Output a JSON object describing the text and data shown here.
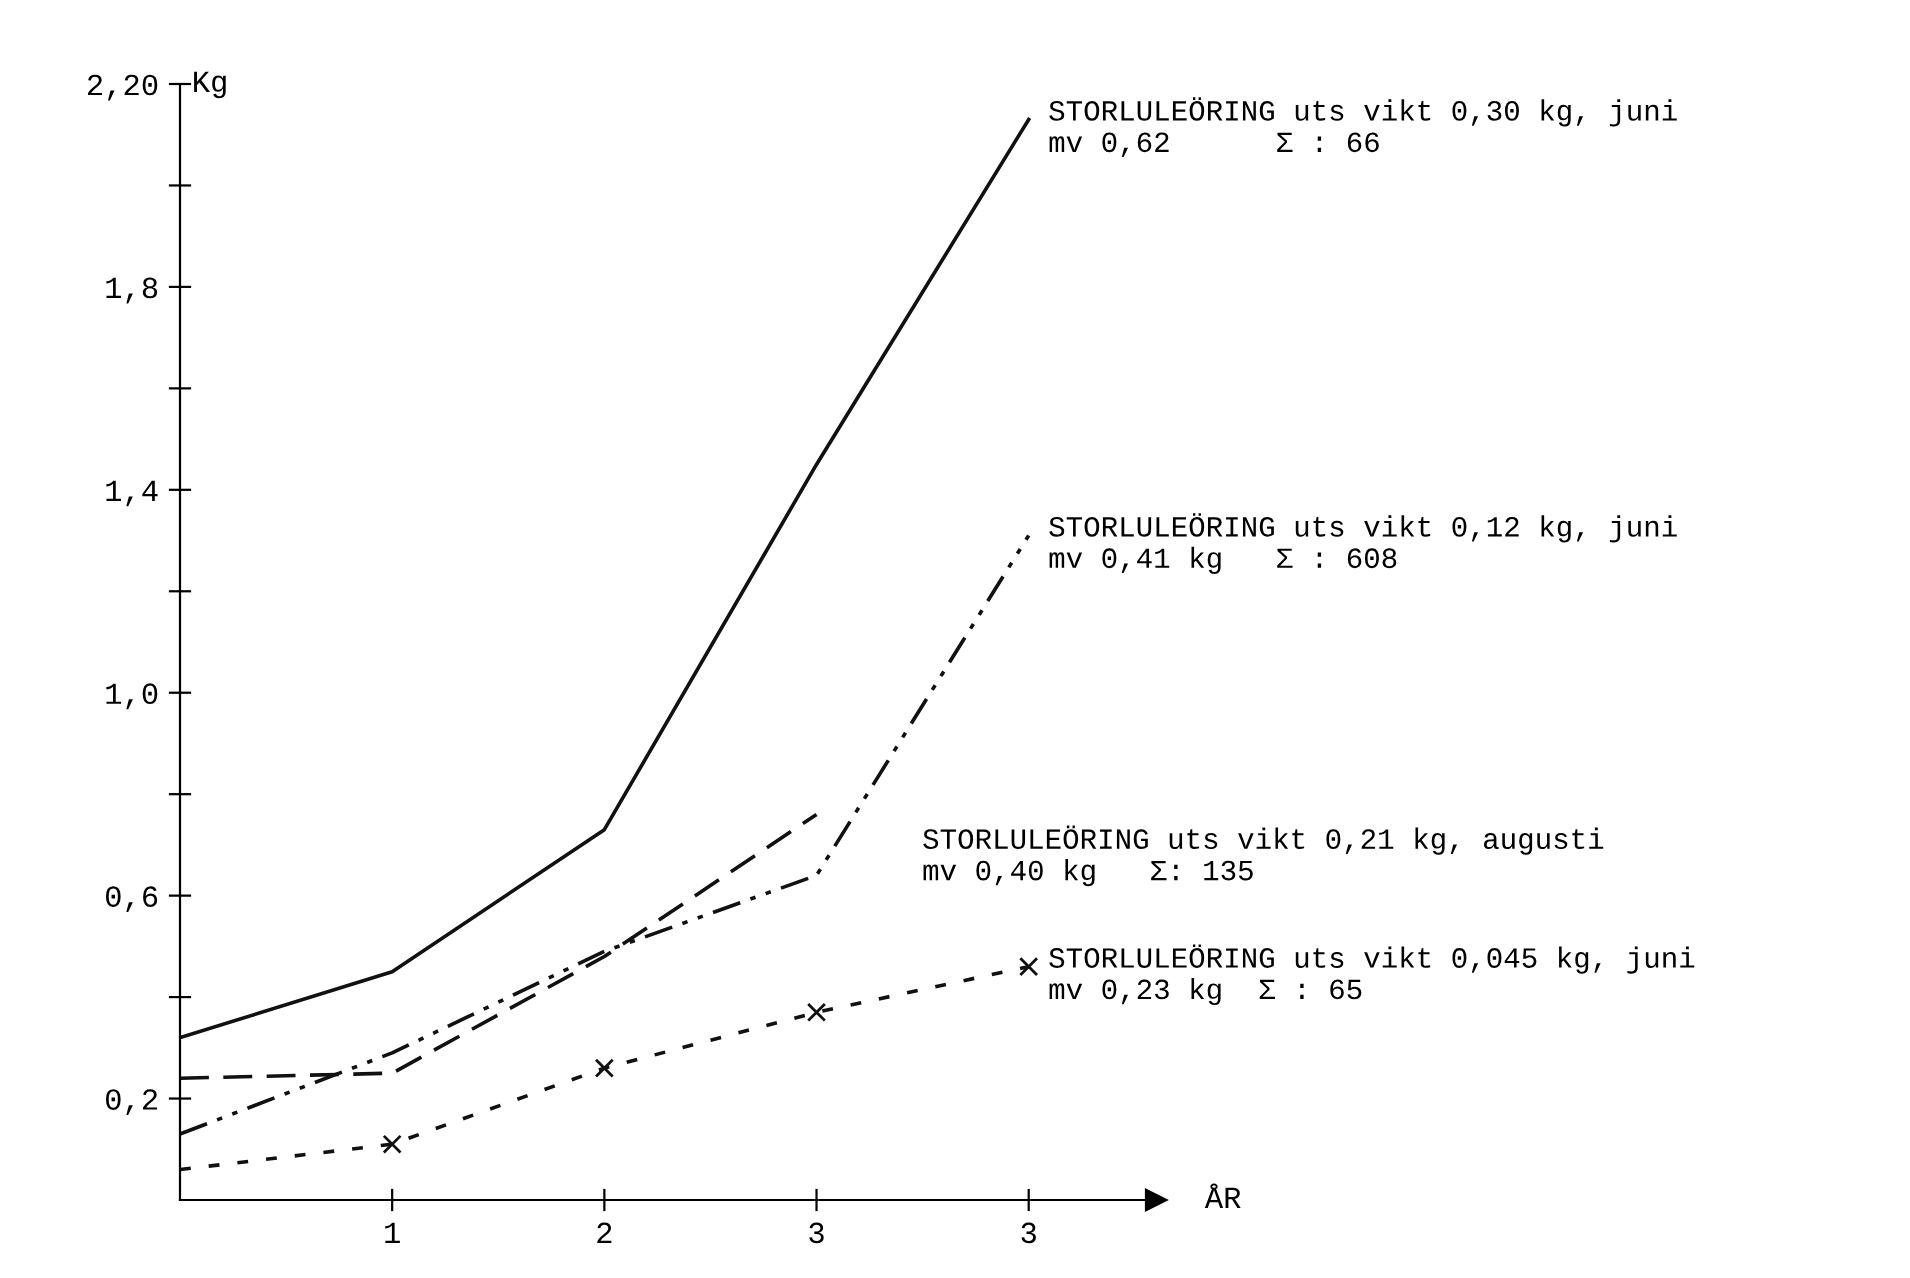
{
  "chart_data": {
    "type": "line",
    "ylabel": "Kg",
    "xlabel": "ÅR",
    "categories": [
      null,
      "1",
      "2",
      "3",
      "3"
    ],
    "ylim": [
      0,
      2.2
    ],
    "yticks": [
      {
        "value": 0.2,
        "label": "0,2"
      },
      {
        "value": 0.4,
        "label": null
      },
      {
        "value": 0.6,
        "label": "0,6"
      },
      {
        "value": 0.8,
        "label": null
      },
      {
        "value": 1.0,
        "label": "1,0"
      },
      {
        "value": 1.2,
        "label": null
      },
      {
        "value": 1.4,
        "label": "1,4"
      },
      {
        "value": 1.6,
        "label": null
      },
      {
        "value": 1.8,
        "label": "1,8"
      },
      {
        "value": 2.0,
        "label": null
      },
      {
        "value": 2.2,
        "label": "2,20"
      }
    ],
    "grid": false,
    "legend": false,
    "series": [
      {
        "name": "STORLULEÖRING uts vikt 0,30 kg, juni\nmv 0,62      Σ : 66",
        "color": "#111111",
        "line_style": "solid",
        "marker": "none",
        "values": [
          0.32,
          0.45,
          0.73,
          1.45,
          2.13
        ]
      },
      {
        "name": "STORLULEÖRING uts vikt 0,12 kg, juni\nmv 0,41 kg   Σ : 608",
        "color": "#111111",
        "line_style": "dashdot",
        "marker": "none",
        "values": [
          0.13,
          0.29,
          0.49,
          0.64,
          1.31
        ]
      },
      {
        "name": "STORLULEÖRING uts vikt 0,21 kg, augusti\nmv 0,40 kg   Σ: 135",
        "color": "#111111",
        "line_style": "dashed",
        "marker": "none",
        "values": [
          0.24,
          0.25,
          0.48,
          0.76,
          null
        ]
      },
      {
        "name": "STORLULEÖRING uts vikt 0,045 kg, juni\nmv 0,23 kg  Σ : 65",
        "color": "#111111",
        "line_style": "dotted",
        "marker": "cross",
        "values": [
          0.06,
          0.11,
          0.26,
          0.37,
          0.46
        ]
      }
    ]
  }
}
